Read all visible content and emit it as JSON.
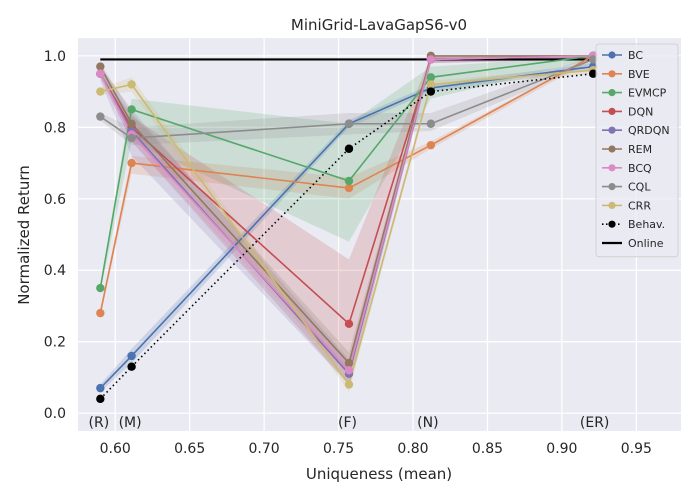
{
  "chart_data": {
    "type": "line",
    "title": "MiniGrid-LavaGapS6-v0",
    "xlabel": "Uniqueness (mean)",
    "ylabel": "Normalized Return",
    "xlim": [
      0.575,
      0.98
    ],
    "ylim": [
      -0.05,
      1.05
    ],
    "xticks": [
      0.6,
      0.65,
      0.7,
      0.75,
      0.8,
      0.85,
      0.9,
      0.95
    ],
    "xtick_labels": [
      "0.60",
      "0.65",
      "0.70",
      "0.75",
      "0.80",
      "0.85",
      "0.90",
      "0.95"
    ],
    "yticks": [
      0.0,
      0.2,
      0.4,
      0.6,
      0.8,
      1.0
    ],
    "ytick_labels": [
      "0.0",
      "0.2",
      "0.4",
      "0.6",
      "0.8",
      "1.0"
    ],
    "grid": true,
    "legend_position": "top-right",
    "x": [
      0.59,
      0.611,
      0.757,
      0.812,
      0.921
    ],
    "annotations": [
      {
        "text": "(R)",
        "x": 0.589
      },
      {
        "text": "(M)",
        "x": 0.61
      },
      {
        "text": "(F)",
        "x": 0.756
      },
      {
        "text": "(N)",
        "x": 0.81
      },
      {
        "text": "(ER)",
        "x": 0.922
      }
    ],
    "series": [
      {
        "name": "BC",
        "color": "#4c72b0",
        "values": [
          0.07,
          0.16,
          0.81,
          0.91,
          0.97
        ],
        "lower": [
          0.06,
          0.14,
          0.8,
          0.9,
          0.96
        ],
        "upper": [
          0.08,
          0.18,
          0.82,
          0.92,
          0.98
        ]
      },
      {
        "name": "BVE",
        "color": "#dd8452",
        "values": [
          0.28,
          0.7,
          0.63,
          0.75,
          1.0
        ],
        "lower": [
          0.27,
          0.67,
          0.6,
          0.74,
          0.99
        ],
        "upper": [
          0.29,
          0.72,
          0.66,
          0.76,
          1.0
        ]
      },
      {
        "name": "EVMCP",
        "color": "#55a868",
        "values": [
          0.35,
          0.85,
          0.65,
          0.94,
          1.0
        ],
        "lower": [
          0.34,
          0.76,
          0.48,
          0.88,
          0.99
        ],
        "upper": [
          0.36,
          0.88,
          0.81,
          0.97,
          1.0
        ]
      },
      {
        "name": "DQN",
        "color": "#c44e52",
        "values": [
          0.95,
          0.8,
          0.25,
          0.99,
          1.0
        ],
        "lower": [
          0.94,
          0.76,
          0.08,
          0.98,
          0.99
        ],
        "upper": [
          0.96,
          0.83,
          0.43,
          1.0,
          1.0
        ]
      },
      {
        "name": "QRDQN",
        "color": "#8172b3",
        "values": [
          0.95,
          0.79,
          0.11,
          0.99,
          1.0
        ],
        "lower": [
          0.93,
          0.72,
          0.08,
          0.98,
          0.99
        ],
        "upper": [
          0.97,
          0.85,
          0.15,
          1.0,
          1.0
        ]
      },
      {
        "name": "REM",
        "color": "#937860",
        "values": [
          0.97,
          0.81,
          0.14,
          1.0,
          1.0
        ],
        "lower": [
          0.96,
          0.79,
          0.11,
          0.99,
          0.99
        ],
        "upper": [
          0.98,
          0.84,
          0.17,
          1.0,
          1.0
        ]
      },
      {
        "name": "BCQ",
        "color": "#da8bc3",
        "values": [
          0.95,
          0.78,
          0.12,
          0.99,
          1.0
        ],
        "lower": [
          0.94,
          0.76,
          0.1,
          0.98,
          0.99
        ],
        "upper": [
          0.96,
          0.8,
          0.14,
          1.0,
          1.0
        ]
      },
      {
        "name": "CQL",
        "color": "#8c8c8c",
        "values": [
          0.83,
          0.77,
          0.81,
          0.81,
          0.99
        ],
        "lower": [
          0.82,
          0.75,
          0.78,
          0.79,
          0.98
        ],
        "upper": [
          0.84,
          0.8,
          0.84,
          0.84,
          1.0
        ]
      },
      {
        "name": "CRR",
        "color": "#ccb974",
        "values": [
          0.9,
          0.92,
          0.08,
          0.92,
          0.96
        ],
        "lower": [
          0.89,
          0.9,
          0.06,
          0.91,
          0.95
        ],
        "upper": [
          0.91,
          0.94,
          0.1,
          0.93,
          0.97
        ]
      },
      {
        "name": "Behav.",
        "color": "#000000",
        "style": "dotted",
        "values": [
          0.04,
          0.13,
          0.74,
          0.9,
          0.95
        ]
      }
    ],
    "online": {
      "name": "Online",
      "color": "#000000",
      "x": [
        0.59,
        0.921
      ],
      "value": 0.99
    }
  }
}
